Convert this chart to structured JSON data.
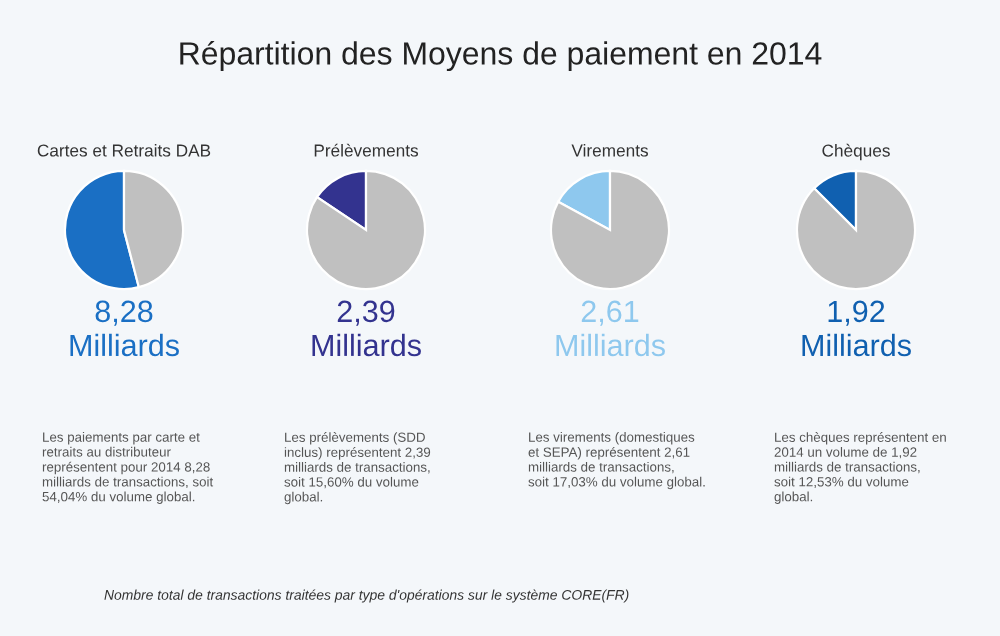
{
  "chart_data": [
    {
      "type": "other",
      "title": "Répartition des Moyens de paiement en 2014",
      "annotations": [
        "Nombre total de transactions traitées par type d'opérations sur le système CORE(FR)"
      ]
    },
    {
      "type": "pie",
      "title": "Cartes et Retraits DAB",
      "categories": [
        null,
        null
      ],
      "values": [
        54.04,
        45.96
      ],
      "colors": [
        "#1a6fc4",
        "#c0c0c0"
      ],
      "annotations": [
        "8,28",
        "Milliards",
        "Les paiements par carte et\nretraits au distributeur\nreprésentent pour 2014 8,28\nmilliards de transactions, soit\n54,04% du volume global."
      ]
    },
    {
      "type": "pie",
      "title": "Prélèvements",
      "categories": [
        null,
        null
      ],
      "values": [
        15.6,
        84.4
      ],
      "colors": [
        "#33338f",
        "#c0c0c0"
      ],
      "annotations": [
        "2,39",
        "Milliards",
        "Les prélèvements (SDD\ninclus) représentent 2,39\nmilliards de transactions,\nsoit 15,60% du volume\nglobal."
      ]
    },
    {
      "type": "pie",
      "title": "Virements",
      "categories": [
        null,
        null
      ],
      "values": [
        17.03,
        82.97
      ],
      "colors": [
        "#8ec8ee",
        "#c0c0c0"
      ],
      "annotations": [
        "2,61",
        "Milliards",
        "Les virements (domestiques\net SEPA) représentent 2,61\nmilliards de transactions,\nsoit 17,03% du volume global."
      ]
    },
    {
      "type": "pie",
      "title": "Chèques",
      "categories": [
        null,
        null
      ],
      "values": [
        12.53,
        87.47
      ],
      "colors": [
        "#1060b0",
        "#c0c0c0"
      ],
      "annotations": [
        "1,92",
        "Milliards",
        "Les chèques représentent en\n2014 un volume de 1,92\nmilliards de transactions,\nsoit 12,53% du volume\nglobal."
      ]
    }
  ]
}
